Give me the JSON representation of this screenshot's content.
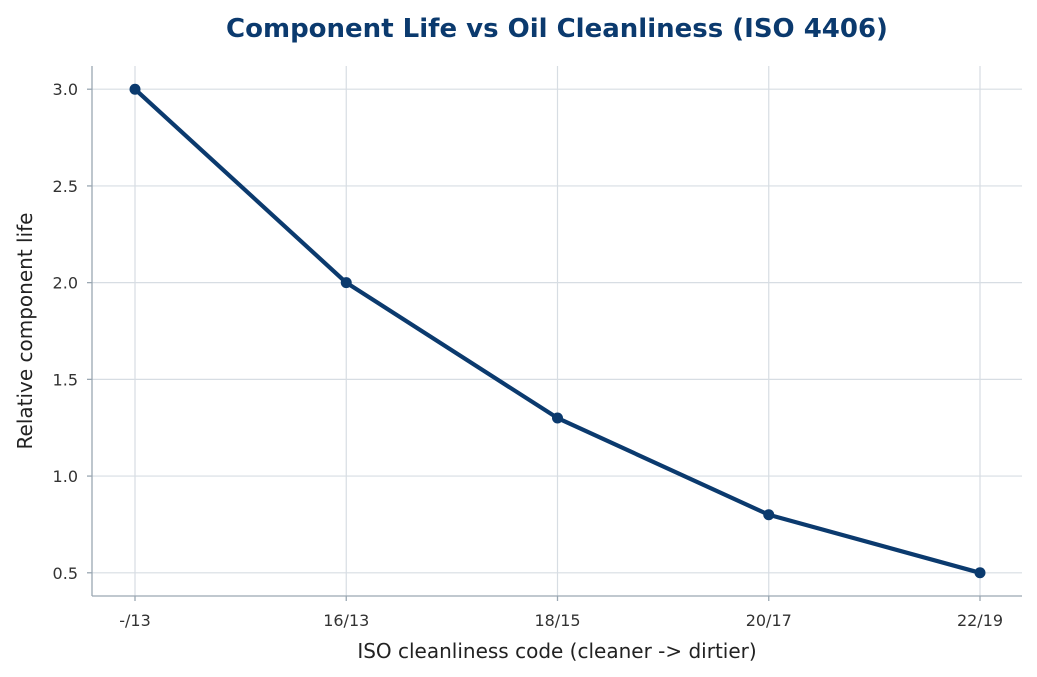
{
  "chart_data": {
    "type": "line",
    "title": "Component Life vs Oil Cleanliness (ISO 4406)",
    "xlabel": "ISO cleanliness code (cleaner -> dirtier)",
    "ylabel": "Relative component life",
    "categories": [
      "-/13",
      "16/13",
      "18/15",
      "20/17",
      "22/19"
    ],
    "series": [
      {
        "values": [
          3.0,
          2.0,
          1.3,
          0.8,
          0.5
        ]
      }
    ],
    "ylim": [
      0.38,
      3.12
    ],
    "yticks": [
      "0.5",
      "1.0",
      "1.5",
      "2.0",
      "2.5",
      "3.0"
    ],
    "grid": true,
    "colors": {
      "line": "#0b3a6e",
      "title": "#0b3a6e"
    }
  }
}
